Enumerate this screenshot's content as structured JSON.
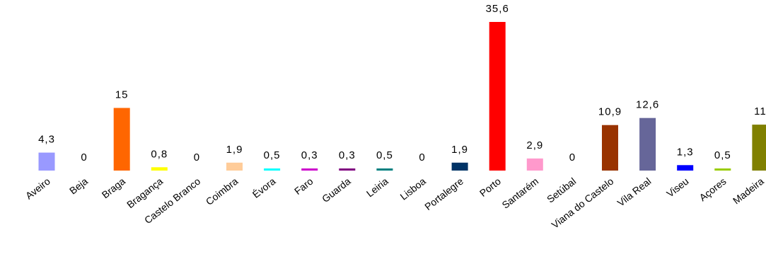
{
  "chart_data": {
    "type": "bar",
    "title": "",
    "xlabel": "",
    "ylabel": "",
    "ylim": [
      0,
      36
    ],
    "grid": false,
    "legend": "none",
    "categories": [
      "Aveiro",
      "Beja",
      "Braga",
      "Bragança",
      "Castelo Branco",
      "Coimbra",
      "Évora",
      "Faro",
      "Guarda",
      "Leiria",
      "Lisboa",
      "Portalegre",
      "Porto",
      "Santarém",
      "Setúbal",
      "Viana do Castelo",
      "Vila Real",
      "Viseu",
      "Açores",
      "Madeira"
    ],
    "values": [
      4.3,
      0,
      15,
      0.8,
      0,
      1.9,
      0.5,
      0.3,
      0.3,
      0.5,
      0,
      1.9,
      35.6,
      2.9,
      0,
      10.9,
      12.6,
      1.3,
      0.5,
      11
    ],
    "value_labels": [
      "4,3",
      "0",
      "15",
      "0,8",
      "0",
      "1,9",
      "0,5",
      "0,3",
      "0,3",
      "0,5",
      "0",
      "1,9",
      "35,6",
      "2,9",
      "0",
      "10,9",
      "12,6",
      "1,3",
      "0,5",
      "11"
    ],
    "colors": [
      "#9999ff",
      "#ffffff",
      "#ff6600",
      "#ffff00",
      "#ffffff",
      "#ffcc99",
      "#00ffff",
      "#cc00cc",
      "#800080",
      "#008080",
      "#ffffff",
      "#003366",
      "#ff0000",
      "#ff99cc",
      "#ffffff",
      "#993300",
      "#666699",
      "#0000ff",
      "#99cc00",
      "#808000"
    ]
  }
}
